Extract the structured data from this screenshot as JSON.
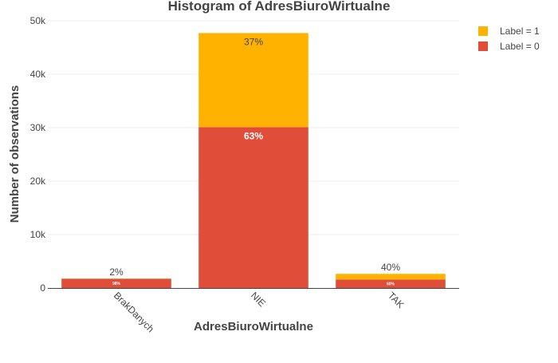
{
  "chart_data": {
    "type": "bar",
    "stacked": true,
    "title": "Histogram of AdresBiuroWirtualne",
    "xlabel": "AdresBiuroWirtualne",
    "ylabel": "Number of observations",
    "categories": [
      "BrakDanych",
      "NIE",
      "TAK"
    ],
    "ylim": [
      0,
      50000
    ],
    "yticks": [
      0,
      10000,
      20000,
      30000,
      40000,
      50000
    ],
    "ytick_labels": [
      "0",
      "10k",
      "20k",
      "30k",
      "40k",
      "50k"
    ],
    "grid": true,
    "legend_position": "top-right",
    "series": [
      {
        "name": "Label = 0",
        "color": "#e04e39",
        "values": [
          1720,
          30100,
          1600
        ],
        "labels": [
          "98%",
          "63%",
          "60%"
        ]
      },
      {
        "name": "Label = 1",
        "color": "#ffb300",
        "values": [
          35,
          17600,
          1050
        ],
        "labels": [
          "2%",
          "37%",
          "40%"
        ]
      }
    ]
  }
}
